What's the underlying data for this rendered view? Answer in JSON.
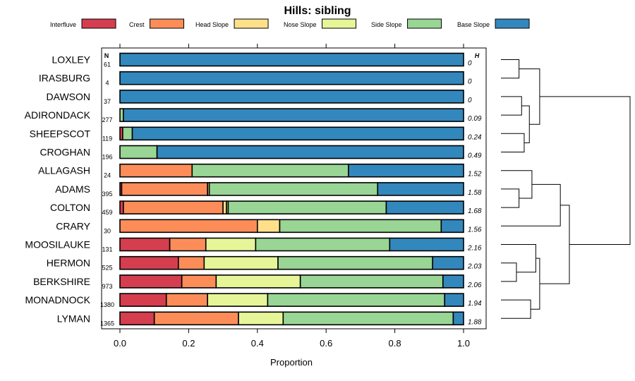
{
  "chart_data": {
    "type": "bar",
    "stacked": true,
    "orientation": "horizontal",
    "title": "Hills: sibling",
    "xlabel": "Proportion",
    "xlim": [
      0,
      1
    ],
    "xticks": [
      "0.0",
      "0.2",
      "0.4",
      "0.6",
      "0.8",
      "1.0"
    ],
    "n_header": "N",
    "h_header": "H",
    "legend": [
      {
        "label": "Interfluve",
        "color": "#D53E4F"
      },
      {
        "label": "Crest",
        "color": "#FC8D59"
      },
      {
        "label": "Head Slope",
        "color": "#FEE08B"
      },
      {
        "label": "Nose Slope",
        "color": "#E6F598"
      },
      {
        "label": "Side Slope",
        "color": "#99D594"
      },
      {
        "label": "Base Slope",
        "color": "#3288BD"
      }
    ],
    "categories": [
      "LOXLEY",
      "IRASBURG",
      "DAWSON",
      "ADIRONDACK",
      "SHEEPSCOT",
      "CROGHAN",
      "ALLAGASH",
      "ADAMS",
      "COLTON",
      "CRARY",
      "MOOSILAUKE",
      "HERMON",
      "BERKSHIRE",
      "MONADNOCK",
      "LYMAN"
    ],
    "n": [
      "61",
      "4",
      "37",
      "277",
      "119",
      "196",
      "24",
      "395",
      "459",
      "30",
      "131",
      "525",
      "973",
      "1380",
      "1365"
    ],
    "h": [
      "0",
      "0",
      "0",
      "0.09",
      "0.24",
      "0.49",
      "1.52",
      "1.58",
      "1.68",
      "1.56",
      "2.16",
      "2.03",
      "2.06",
      "1.94",
      "1.88"
    ],
    "series": [
      {
        "name": "Interfluve",
        "values": [
          0,
          0,
          0,
          0,
          0.008,
          0,
          0,
          0.005,
          0.01,
          0,
          0.145,
          0.17,
          0.18,
          0.135,
          0.1
        ]
      },
      {
        "name": "Crest",
        "values": [
          0,
          0,
          0,
          0,
          0,
          0,
          0.21,
          0.25,
          0.29,
          0.4,
          0.105,
          0.075,
          0.1,
          0.12,
          0.245
        ]
      },
      {
        "name": "Head Slope",
        "values": [
          0,
          0,
          0,
          0,
          0,
          0,
          0,
          0.005,
          0.01,
          0.065,
          0,
          0,
          0,
          0,
          0
        ]
      },
      {
        "name": "Nose Slope",
        "values": [
          0,
          0,
          0,
          0,
          0,
          0,
          0,
          0,
          0.005,
          0,
          0.145,
          0.215,
          0.245,
          0.175,
          0.13
        ]
      },
      {
        "name": "Side Slope",
        "values": [
          0,
          0,
          0,
          0.01,
          0.028,
          0.108,
          0.455,
          0.49,
          0.46,
          0.47,
          0.39,
          0.45,
          0.415,
          0.515,
          0.495
        ]
      },
      {
        "name": "Base Slope",
        "values": [
          1,
          1,
          1,
          0.99,
          0.964,
          0.892,
          0.335,
          0.25,
          0.225,
          0.065,
          0.215,
          0.09,
          0.06,
          0.055,
          0.03
        ]
      }
    ],
    "dendrogram": {
      "method": "hierarchical clustering of leaves in display order",
      "merges": [
        {
          "a": "LOXLEY",
          "b": "IRASBURG",
          "height": 0.14
        },
        {
          "a": "SHEEPSCOT",
          "b": "CROGHAN",
          "height": 0.18
        },
        {
          "a": "DAWSON",
          "b": "ADIRONDACK",
          "height": 0.16
        },
        {
          "a": "m3",
          "b": "m2",
          "height": 0.22
        },
        {
          "a": "m1",
          "b": "m4",
          "height": 0.3
        },
        {
          "a": "ADAMS",
          "b": "COLTON",
          "height": 0.14
        },
        {
          "a": "ALLAGASH",
          "b": "m6",
          "height": 0.24
        },
        {
          "a": "m7",
          "b": "CRARY",
          "height": 0.46
        },
        {
          "a": "HERMON",
          "b": "BERKSHIRE",
          "height": 0.12
        },
        {
          "a": "MONADNOCK",
          "b": "LYMAN",
          "height": 0.23
        },
        {
          "a": "m9",
          "b": "MOOSILAUKE",
          "height": 0.27
        },
        {
          "a": "m11",
          "b": "m10",
          "height": 0.3
        },
        {
          "a": "m8",
          "b": "m12",
          "height": 0.53
        },
        {
          "a": "m5",
          "b": "m13",
          "height": 1.0
        }
      ]
    }
  }
}
